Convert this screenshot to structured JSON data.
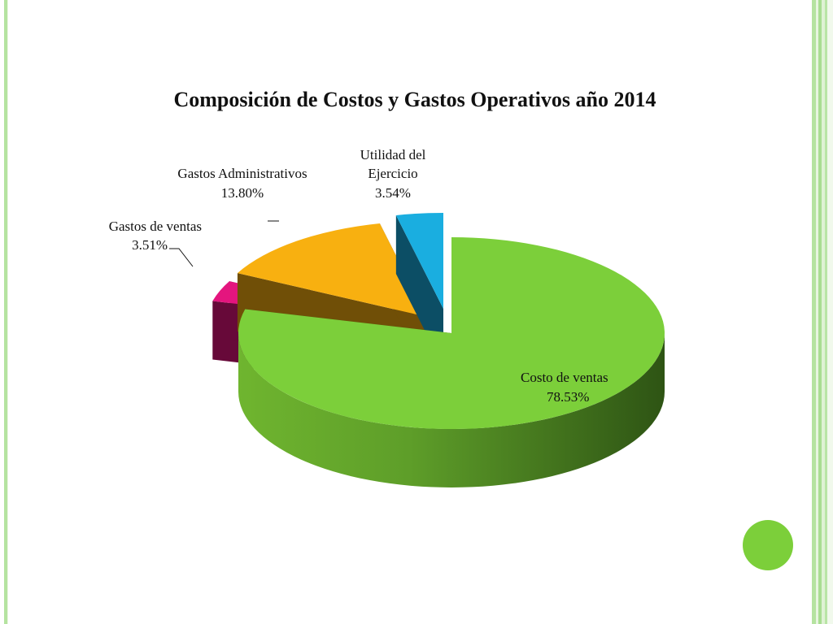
{
  "chart_data": {
    "type": "pie",
    "style": "3d-exploded",
    "title": "Composición de Costos y Gastos Operativos año 2014",
    "legend": "none",
    "slices": [
      {
        "name": "Costo de ventas",
        "value": 78.53,
        "label": "78.53%",
        "color": "#7ccf3a"
      },
      {
        "name": "Gastos de ventas",
        "value": 3.51,
        "label": "3.51%",
        "color": "#e4157e"
      },
      {
        "name": "Gastos Administrativos",
        "value": 13.8,
        "label": "13.80%",
        "color": "#f8b010"
      },
      {
        "name": "Utilidad del Ejercicio",
        "value": 3.54,
        "label": "3.54%",
        "color": "#1aaee0"
      }
    ]
  },
  "decor": {
    "accent_color": "#7ccf3a",
    "border_color": "#b5e3a0"
  }
}
